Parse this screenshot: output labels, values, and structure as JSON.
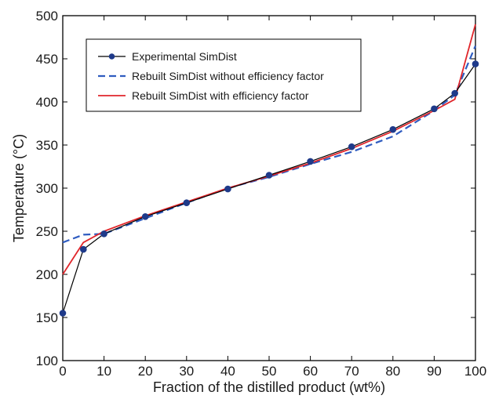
{
  "chart_data": {
    "type": "line",
    "title": "",
    "xlabel": "Fraction of the distilled product (wt%)",
    "ylabel": "Temperature (°C)",
    "xlim": [
      0,
      100
    ],
    "ylim": [
      100,
      500
    ],
    "xticks": [
      0,
      10,
      20,
      30,
      40,
      50,
      60,
      70,
      80,
      90,
      100
    ],
    "yticks": [
      100,
      150,
      200,
      250,
      300,
      350,
      400,
      450,
      500
    ],
    "grid": false,
    "legend_position": "top-left",
    "series": [
      {
        "name": "Experimental SimDist",
        "color": "#000000",
        "marker_color": "#1f3a8a",
        "style": "solid-with-markers",
        "x": [
          0,
          5,
          10,
          20,
          30,
          40,
          50,
          60,
          70,
          80,
          90,
          95,
          100
        ],
        "y": [
          155,
          229,
          247,
          267,
          283,
          299,
          315,
          331,
          348,
          368,
          392,
          410,
          444
        ]
      },
      {
        "name": "Rebuilt SimDist without efficiency factor",
        "color": "#2f5cc0",
        "style": "dashed",
        "x": [
          0,
          5,
          10,
          20,
          30,
          40,
          50,
          60,
          70,
          80,
          90,
          95,
          100
        ],
        "y": [
          237,
          246,
          247,
          265,
          283,
          300,
          313,
          328,
          342,
          360,
          390,
          408,
          465
        ]
      },
      {
        "name": "Rebuilt SimDist with efficiency factor",
        "color": "#e0262b",
        "style": "solid",
        "x": [
          0,
          5,
          10,
          20,
          30,
          40,
          50,
          60,
          70,
          80,
          90,
          95,
          100
        ],
        "y": [
          200,
          237,
          250,
          268,
          284,
          300,
          314,
          329,
          346,
          366,
          390,
          403,
          490
        ]
      }
    ]
  }
}
